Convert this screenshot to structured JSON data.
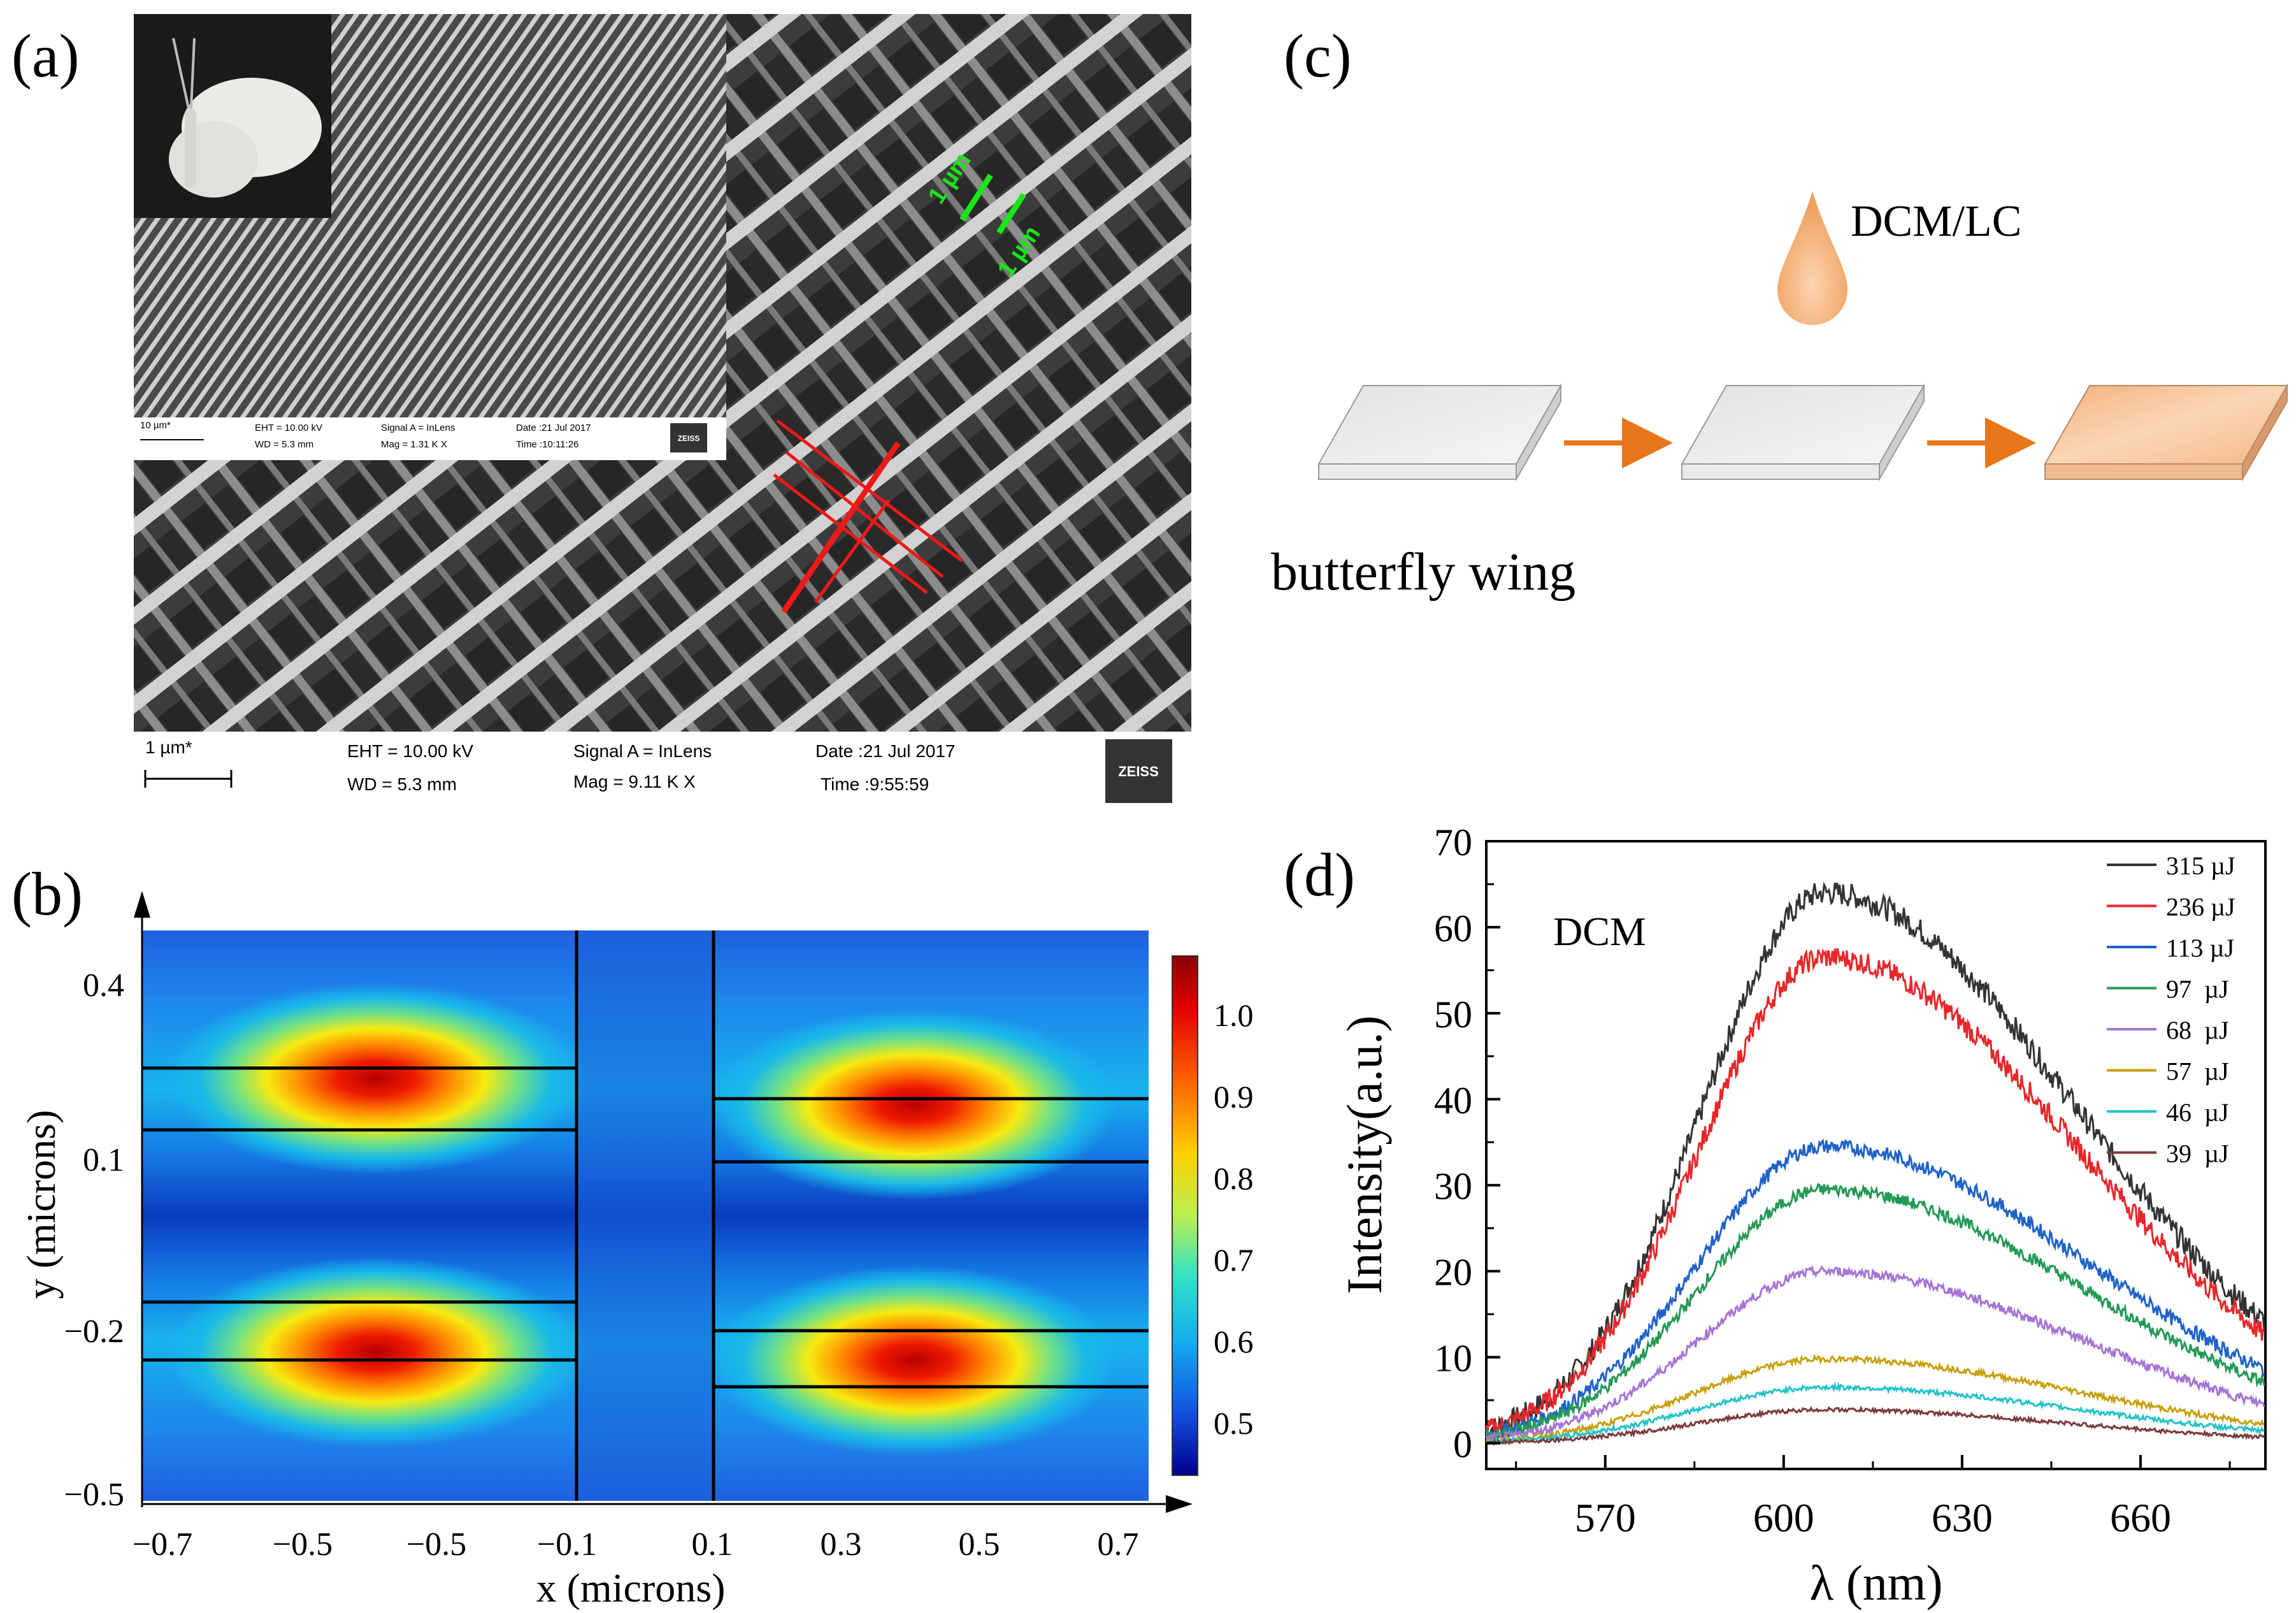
{
  "panels": {
    "a": {
      "label": "(a)"
    },
    "b": {
      "label": "(b)"
    },
    "c": {
      "label": "(c)"
    },
    "d": {
      "label": "(d)"
    }
  },
  "sem_main": {
    "scale": "1 µm*",
    "eht": "EHT = 10.00 kV",
    "wd": "WD =  5.3 mm",
    "signal": "Signal A = InLens",
    "mag": "Mag =    9.11 K X",
    "date": "Date :21 Jul 2017",
    "time": "Time :9:55:59",
    "logo": "ZEISS",
    "annot_top": "1 µm",
    "annot_bottom": "1 µm"
  },
  "sem_inset": {
    "scale": "10 µm*",
    "eht": "EHT = 10.00 kV",
    "wd": "WD =  5.3 mm",
    "signal": "Signal A = InLens",
    "mag": "Mag =   1.31 K X",
    "date": "Date :21 Jul 2017",
    "time": "Time :10:11:26",
    "logo": "ZEISS"
  },
  "process": {
    "drop_label": "DCM/LC",
    "caption": "butterfly wing"
  },
  "mode_map": {
    "xlabel": "x (microns)",
    "ylabel": "y (microns)",
    "x_ticks": [
      "−0.7",
      "−0.5",
      "−0.5",
      "−0.1",
      "0.1",
      "0.3",
      "0.5",
      "0.7"
    ],
    "y_ticks": [
      "0.4",
      "0.1",
      "−0.2",
      "−0.5"
    ],
    "colorbar_ticks": [
      "1.0",
      "0.9",
      "0.8",
      "0.7",
      "0.6",
      "0.5"
    ]
  },
  "chart_data": {
    "type": "line",
    "title": "",
    "annotation": "DCM",
    "xlabel": "λ (nm)",
    "ylabel": "Intensity(a.u.)",
    "xlim": [
      550,
      681
    ],
    "ylim": [
      -3,
      70
    ],
    "x_ticks": [
      570,
      600,
      630,
      660
    ],
    "y_ticks": [
      0,
      10,
      20,
      30,
      40,
      50,
      60,
      70
    ],
    "peak_wavelength_nm": 607,
    "series": [
      {
        "name": "315 µJ",
        "color": "#333333",
        "peak": 64,
        "start": 1.5,
        "end": 14
      },
      {
        "name": "236 µJ",
        "color": "#e8262a",
        "peak": 56.5,
        "start": 1.5,
        "end": 12.5
      },
      {
        "name": "113 µJ",
        "color": "#1f62c8",
        "peak": 34.5,
        "start": 1.0,
        "end": 8.5
      },
      {
        "name": "97  µJ",
        "color": "#229955",
        "peak": 29.5,
        "start": 0.8,
        "end": 7.0
      },
      {
        "name": "68  µJ",
        "color": "#a574d4",
        "peak": 20,
        "start": 0.5,
        "end": 4.5
      },
      {
        "name": "57  µJ",
        "color": "#c8a010",
        "peak": 9.8,
        "start": 0.3,
        "end": 2.2
      },
      {
        "name": "46  µJ",
        "color": "#22c3c9",
        "peak": 6.5,
        "start": 0.2,
        "end": 1.4
      },
      {
        "name": "39  µJ",
        "color": "#7a3b3b",
        "peak": 3.9,
        "start": 0.1,
        "end": 0.7
      }
    ]
  }
}
